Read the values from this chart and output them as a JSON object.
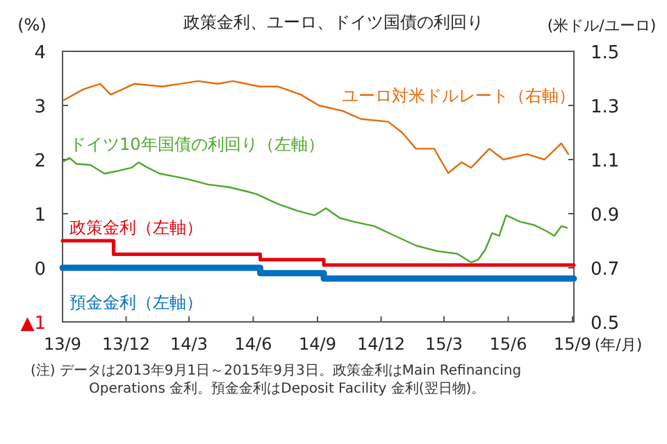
{
  "chart_data": {
    "type": "line",
    "title": "政策金利、ユーロ、ドイツ国債の利回り",
    "ylabel": "(%)",
    "y2label": "(米ドル/ユーロ)",
    "xlabel": "(年/月)",
    "annotations": [
      "(注) データは2013年9月1日～2015年9月3日。政策金利はMain Refinancing Operations 金利。預金金利はDeposit Facility 金利(翌日物)。"
    ],
    "xlim": [
      "2013-09-01",
      "2015-09-03"
    ],
    "xticks": [
      {
        "value": "2013-09-01",
        "label": "13/9"
      },
      {
        "value": "2013-12-01",
        "label": "13/12"
      },
      {
        "value": "2014-03-01",
        "label": "14/3"
      },
      {
        "value": "2014-06-01",
        "label": "14/6"
      },
      {
        "value": "2014-09-01",
        "label": "14/9"
      },
      {
        "value": "2014-12-01",
        "label": "14/12"
      },
      {
        "value": "2015-03-01",
        "label": "15/3"
      },
      {
        "value": "2015-06-01",
        "label": "15/6"
      },
      {
        "value": "2015-09-01",
        "label": "15/9"
      }
    ],
    "ylim": [
      -1,
      4
    ],
    "yticks": [
      {
        "value": -1,
        "label": "▲1"
      },
      0,
      1,
      2,
      3,
      4
    ],
    "y2lim": [
      0.5,
      1.5
    ],
    "y2ticks": [
      0.5,
      0.7,
      0.9,
      1.1,
      1.3,
      1.5
    ],
    "grid": false,
    "series": [
      {
        "name": "ユーロ対米ドルレート（右軸）",
        "color": "#e46c0a",
        "axis": "y2",
        "x": [
          "2013-09-03",
          "2013-10-01",
          "2013-10-25",
          "2013-11-09",
          "2013-12-13",
          "2014-01-22",
          "2014-03-14",
          "2014-04-11",
          "2014-05-03",
          "2014-06-10",
          "2014-07-06",
          "2014-08-08",
          "2014-09-03",
          "2014-10-07",
          "2014-11-02",
          "2014-12-11",
          "2014-12-31",
          "2015-01-20",
          "2015-02-15",
          "2015-03-07",
          "2015-03-26",
          "2015-04-09",
          "2015-05-05",
          "2015-05-25",
          "2015-06-28",
          "2015-07-23",
          "2015-08-16",
          "2015-08-26"
        ],
        "values": [
          1.32,
          1.36,
          1.38,
          1.34,
          1.38,
          1.37,
          1.39,
          1.38,
          1.39,
          1.37,
          1.37,
          1.34,
          1.3,
          1.28,
          1.25,
          1.24,
          1.2,
          1.14,
          1.14,
          1.05,
          1.09,
          1.07,
          1.14,
          1.1,
          1.12,
          1.1,
          1.16,
          1.12
        ]
      },
      {
        "name": "ドイツ10年国債の利回り（左軸）",
        "color": "#4ea72e",
        "x": [
          "2013-09-03",
          "2013-09-11",
          "2013-09-21",
          "2013-10-11",
          "2013-10-31",
          "2013-11-19",
          "2013-12-09",
          "2013-12-19",
          "2013-12-29",
          "2014-01-18",
          "2014-02-07",
          "2014-02-27",
          "2014-03-28",
          "2014-04-27",
          "2014-05-23",
          "2014-06-06",
          "2014-07-06",
          "2014-08-04",
          "2014-08-28",
          "2014-09-13",
          "2014-10-03",
          "2014-10-23",
          "2014-11-21",
          "2014-12-21",
          "2015-01-20",
          "2015-02-19",
          "2015-03-20",
          "2015-04-09",
          "2015-04-19",
          "2015-04-29",
          "2015-05-09",
          "2015-05-19",
          "2015-05-29",
          "2015-06-18",
          "2015-07-08",
          "2015-07-27",
          "2015-08-06",
          "2015-08-16",
          "2015-08-24"
        ],
        "values": [
          1.97,
          2.03,
          1.92,
          1.9,
          1.74,
          1.79,
          1.85,
          1.95,
          1.87,
          1.74,
          1.69,
          1.64,
          1.54,
          1.49,
          1.41,
          1.36,
          1.18,
          1.05,
          0.97,
          1.1,
          0.92,
          0.85,
          0.77,
          0.59,
          0.41,
          0.31,
          0.26,
          0.1,
          0.15,
          0.33,
          0.64,
          0.59,
          0.97,
          0.85,
          0.79,
          0.67,
          0.59,
          0.77,
          0.74
        ]
      },
      {
        "name": "政策金利（左軸）",
        "type": "step",
        "color": "#e8000b",
        "x": [
          "2013-09-01",
          "2013-11-13",
          "2014-06-11",
          "2014-09-10",
          "2015-09-03"
        ],
        "values": [
          0.5,
          0.25,
          0.15,
          0.05,
          0.05
        ]
      },
      {
        "name": "預金金利（左軸）",
        "type": "step",
        "color": "#0070c0",
        "x": [
          "2013-09-01",
          "2013-11-13",
          "2014-06-11",
          "2014-09-10",
          "2015-09-03"
        ],
        "values": [
          0,
          0,
          -0.1,
          -0.2,
          -0.2
        ]
      }
    ]
  }
}
